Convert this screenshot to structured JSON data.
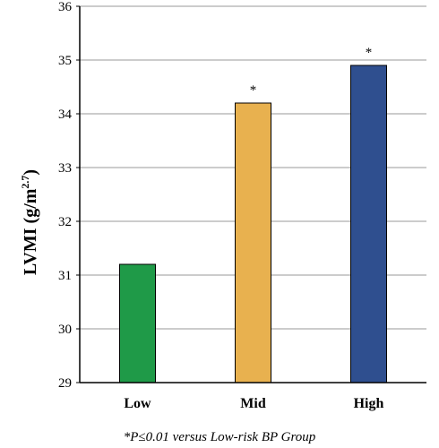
{
  "chart_data": {
    "type": "bar",
    "categories": [
      "Low",
      "Mid",
      "High"
    ],
    "values": [
      31.2,
      34.2,
      34.9
    ],
    "colors": [
      "#1f9a48",
      "#e8b14f",
      "#2f4f8f"
    ],
    "significance": [
      "",
      "*",
      "*"
    ],
    "ylim": [
      29,
      36
    ],
    "yticks": [
      29,
      30,
      31,
      32,
      33,
      34,
      35,
      36
    ],
    "ylabel_main": "LVMI (g/m",
    "ylabel_sup": "2.7",
    "ylabel_close": ")",
    "xlabel": "",
    "grid": true,
    "footnote": "*P≤0.01 versus Low-risk BP Group"
  }
}
